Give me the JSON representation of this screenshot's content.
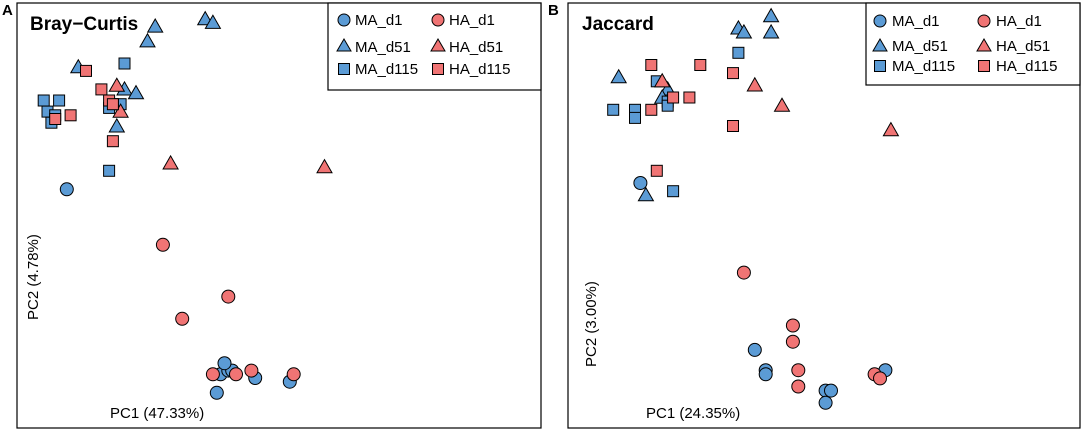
{
  "chart_data": [
    {
      "type": "scatter",
      "panel": "A",
      "title": "Bray−Curtis",
      "xlabel": "PC1 (47.33%)",
      "ylabel": "PC2 (4.78%)",
      "xlim": [
        -0.3,
        1.0
      ],
      "ylim": [
        -0.8,
        0.3
      ],
      "grid": false,
      "legend_position": "top-right",
      "series": [
        {
          "name": "MA_d1",
          "color": "#5b9bd5",
          "shape": "circle",
          "points": [
            [
              -0.22,
              -0.19
            ],
            [
              0.18,
              -0.69
            ],
            [
              0.2,
              -0.68
            ],
            [
              0.21,
              -0.68
            ],
            [
              0.27,
              -0.7
            ],
            [
              0.36,
              -0.71
            ],
            [
              0.17,
              -0.74
            ],
            [
              0.19,
              -0.66
            ]
          ]
        },
        {
          "name": "MA_d51",
          "color": "#5b9bd5",
          "shape": "triangle",
          "points": [
            [
              0.14,
              0.27
            ],
            [
              0.16,
              0.26
            ],
            [
              0.01,
              0.25
            ],
            [
              -0.01,
              0.21
            ],
            [
              -0.19,
              0.14
            ],
            [
              -0.07,
              0.08
            ],
            [
              -0.04,
              0.07
            ],
            [
              -0.09,
              -0.02
            ]
          ]
        },
        {
          "name": "MA_d115",
          "color": "#5b9bd5",
          "shape": "square",
          "points": [
            [
              -0.07,
              0.15
            ],
            [
              -0.28,
              0.05
            ],
            [
              -0.24,
              0.05
            ],
            [
              -0.27,
              0.02
            ],
            [
              -0.25,
              0.01
            ],
            [
              -0.26,
              -0.01
            ],
            [
              -0.08,
              0.04
            ],
            [
              -0.1,
              0.04
            ],
            [
              -0.11,
              0.03
            ],
            [
              -0.11,
              -0.14
            ]
          ]
        },
        {
          "name": "HA_d1",
          "color": "#f07474",
          "shape": "circle",
          "points": [
            [
              0.03,
              -0.34
            ],
            [
              0.08,
              -0.54
            ],
            [
              0.16,
              -0.69
            ],
            [
              0.22,
              -0.69
            ],
            [
              0.26,
              -0.68
            ],
            [
              0.2,
              -0.48
            ],
            [
              0.37,
              -0.69
            ]
          ]
        },
        {
          "name": "HA_d51",
          "color": "#f07474",
          "shape": "triangle",
          "points": [
            [
              -0.09,
              0.09
            ],
            [
              -0.08,
              0.02
            ],
            [
              0.05,
              -0.12
            ],
            [
              0.45,
              -0.13
            ]
          ]
        },
        {
          "name": "HA_d115",
          "color": "#f07474",
          "shape": "square",
          "points": [
            [
              -0.17,
              0.13
            ],
            [
              -0.13,
              0.08
            ],
            [
              -0.11,
              0.05
            ],
            [
              -0.1,
              0.04
            ],
            [
              -0.21,
              0.01
            ],
            [
              -0.25,
              0.0
            ],
            [
              -0.1,
              -0.06
            ]
          ]
        }
      ]
    },
    {
      "type": "scatter",
      "panel": "B",
      "title": "Jaccard",
      "xlabel": "PC1 (24.35%)",
      "ylabel": "PC2 (3.00%)",
      "xlim": [
        -0.3,
        0.6
      ],
      "ylim": [
        -0.7,
        0.3
      ],
      "grid": false,
      "legend_position": "top-right",
      "series": [
        {
          "name": "MA_d1",
          "color": "#5b9bd5",
          "shape": "circle",
          "points": [
            [
              -0.2,
              -0.13
            ],
            [
              0.01,
              -0.54
            ],
            [
              0.03,
              -0.59
            ],
            [
              0.03,
              -0.6
            ],
            [
              0.14,
              -0.64
            ],
            [
              0.15,
              -0.64
            ],
            [
              0.14,
              -0.67
            ],
            [
              0.25,
              -0.59
            ]
          ]
        },
        {
          "name": "MA_d51",
          "color": "#5b9bd5",
          "shape": "triangle",
          "points": [
            [
              -0.02,
              0.25
            ],
            [
              -0.01,
              0.24
            ],
            [
              0.04,
              0.28
            ],
            [
              0.04,
              0.24
            ],
            [
              -0.24,
              0.13
            ],
            [
              -0.15,
              0.1
            ],
            [
              -0.16,
              0.08
            ],
            [
              -0.19,
              -0.16
            ]
          ]
        },
        {
          "name": "MA_d115",
          "color": "#5b9bd5",
          "shape": "square",
          "points": [
            [
              -0.02,
              0.19
            ],
            [
              -0.17,
              0.12
            ],
            [
              -0.25,
              0.05
            ],
            [
              -0.21,
              0.05
            ],
            [
              -0.21,
              0.03
            ],
            [
              -0.15,
              0.07
            ],
            [
              -0.15,
              0.06
            ],
            [
              -0.14,
              -0.15
            ]
          ]
        },
        {
          "name": "HA_d1",
          "color": "#f07474",
          "shape": "circle",
          "points": [
            [
              -0.01,
              -0.35
            ],
            [
              0.08,
              -0.48
            ],
            [
              0.08,
              -0.52
            ],
            [
              0.09,
              -0.59
            ],
            [
              0.09,
              -0.63
            ],
            [
              0.23,
              -0.6
            ],
            [
              0.24,
              -0.61
            ]
          ]
        },
        {
          "name": "HA_d51",
          "color": "#f07474",
          "shape": "triangle",
          "points": [
            [
              -0.16,
              0.12
            ],
            [
              0.01,
              0.11
            ],
            [
              0.06,
              0.06
            ],
            [
              0.26,
              0.0
            ]
          ]
        },
        {
          "name": "HA_d115",
          "color": "#f07474",
          "shape": "square",
          "points": [
            [
              -0.18,
              0.16
            ],
            [
              -0.09,
              0.16
            ],
            [
              -0.03,
              0.14
            ],
            [
              -0.14,
              0.08
            ],
            [
              -0.11,
              0.08
            ],
            [
              -0.18,
              0.05
            ],
            [
              -0.03,
              0.01
            ],
            [
              -0.17,
              -0.1
            ]
          ]
        }
      ]
    }
  ]
}
